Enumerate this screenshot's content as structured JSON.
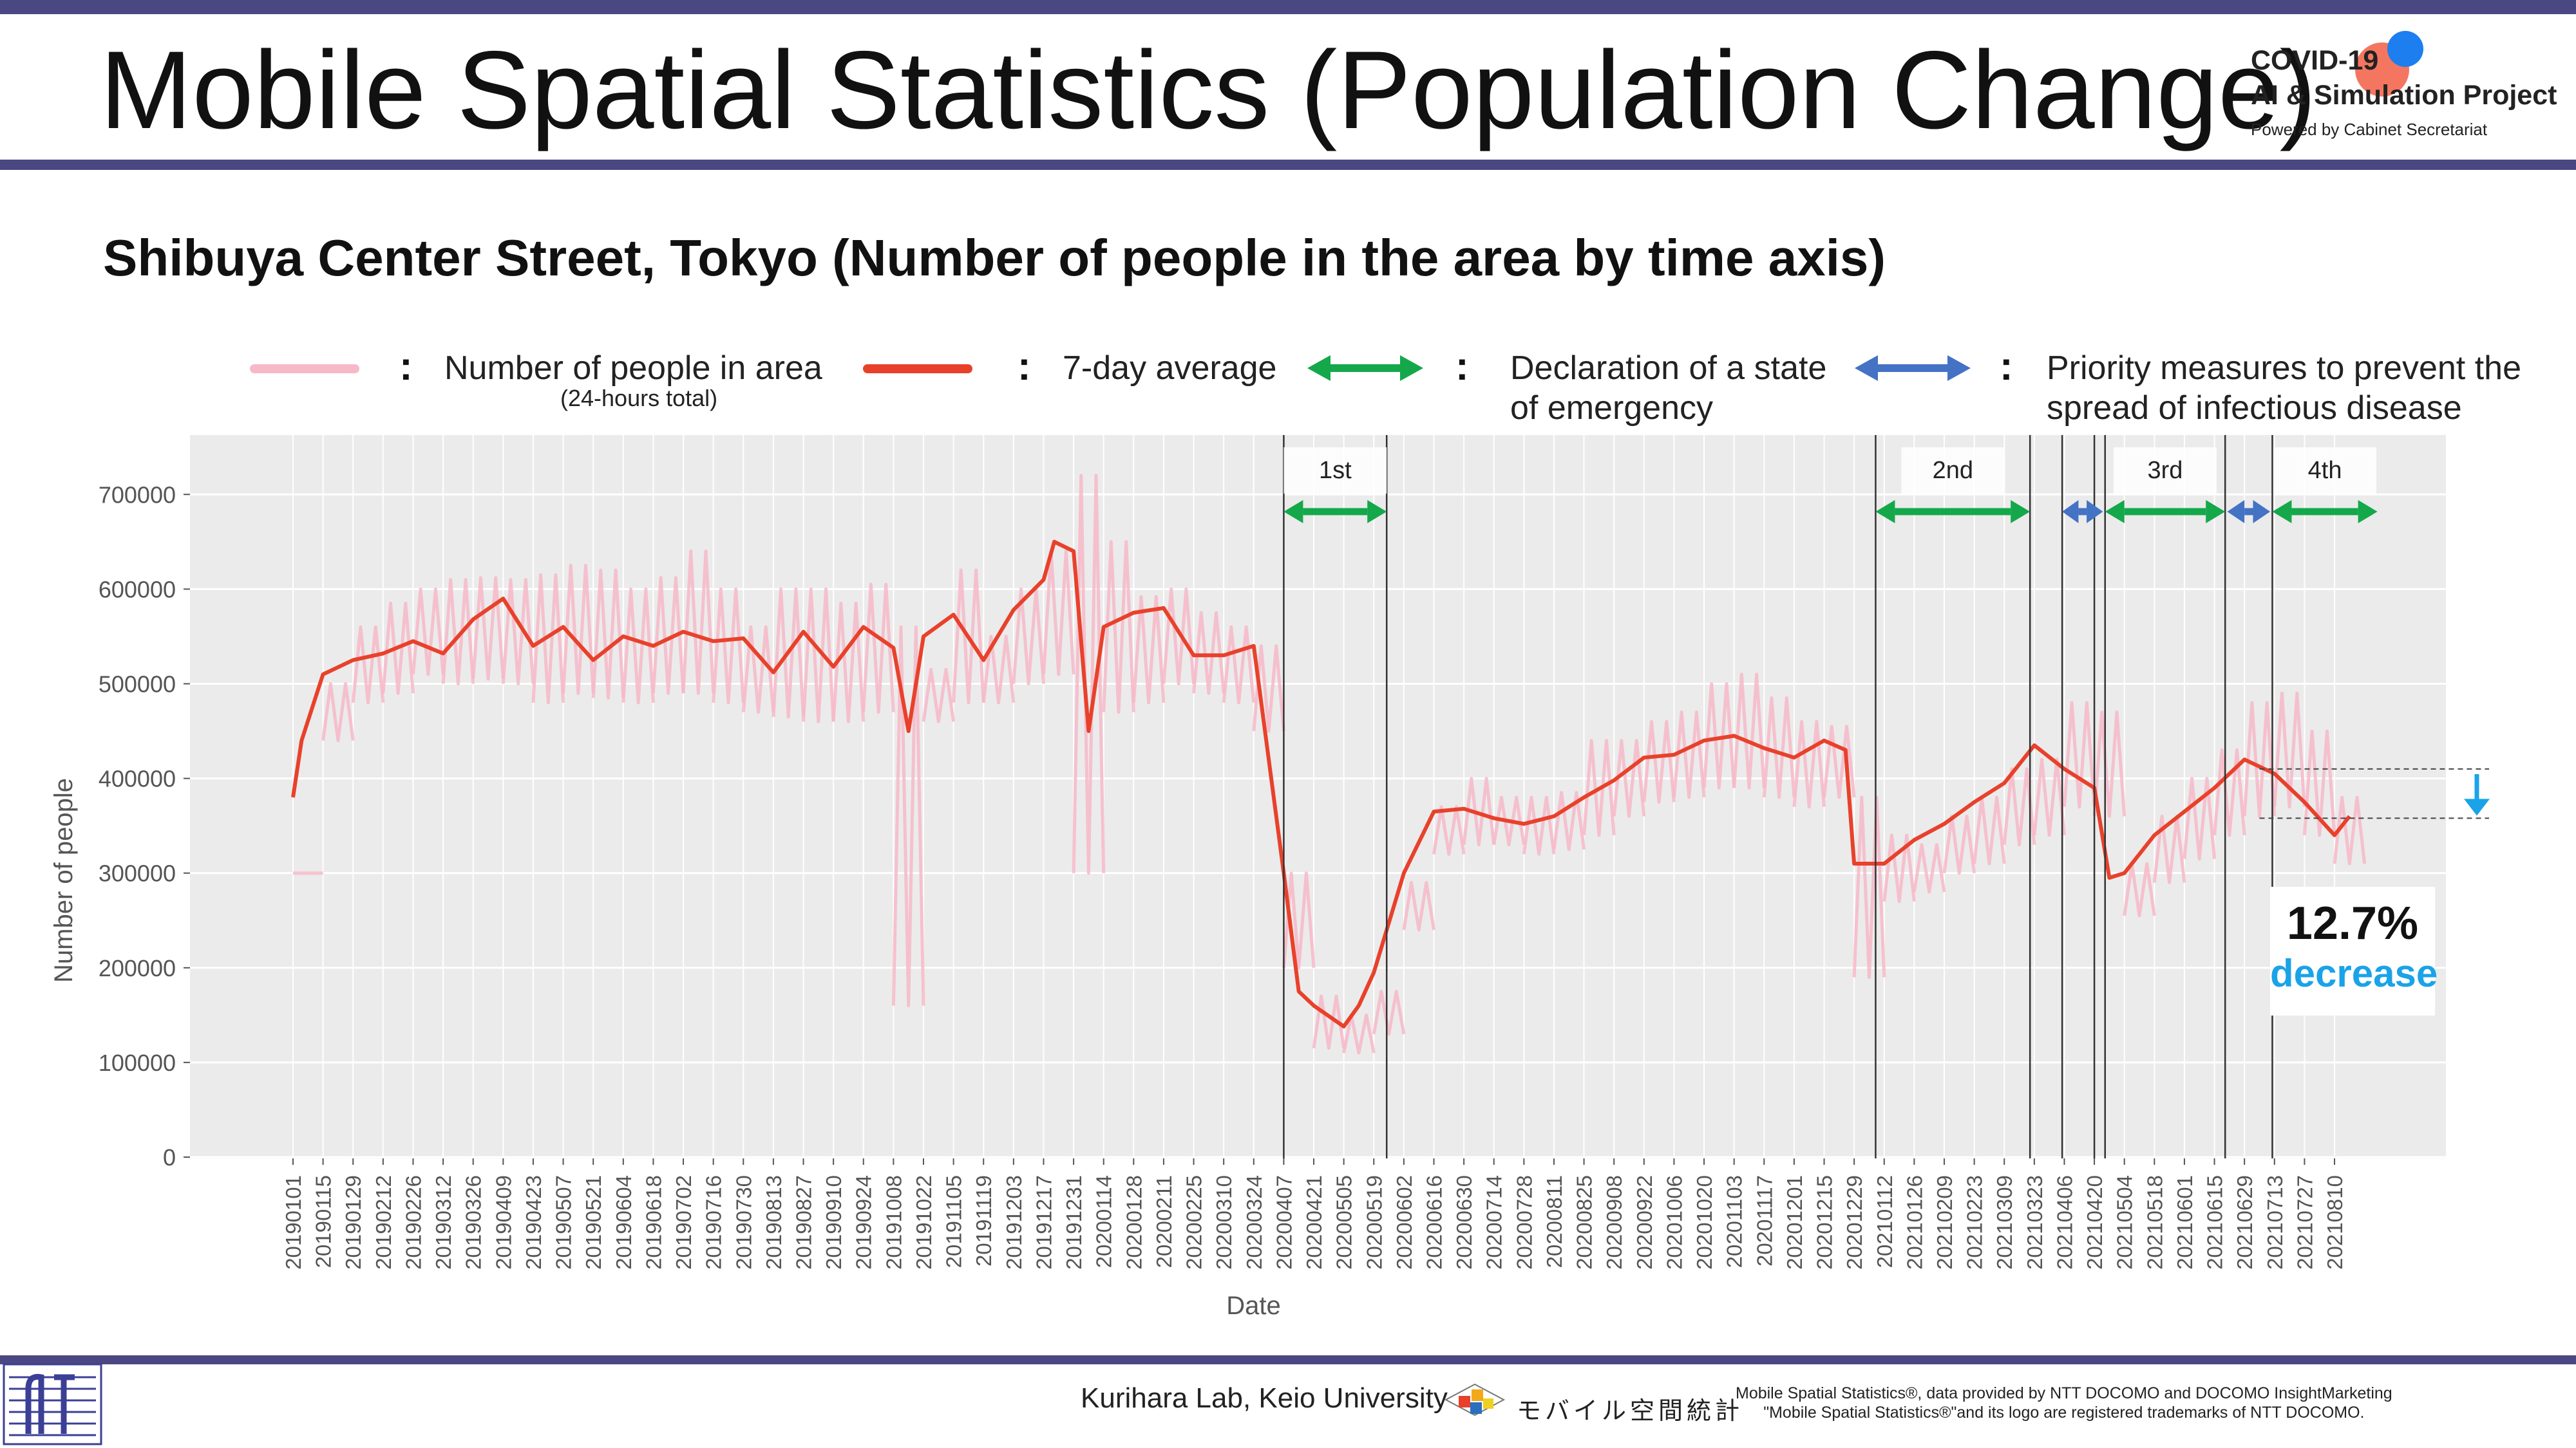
{
  "header": {
    "title": "Mobile Spatial Statistics (Population Change)",
    "logo_line1": "COVID-19",
    "logo_line2": "AI & Simulation Project",
    "logo_line3": "Powered by Cabinet Secretariat"
  },
  "subtitle": "Shibuya Center Street, Tokyo (Number of people in the area by time axis)",
  "legend": {
    "daily_label": "Number of people in area",
    "daily_sub": "(24-hours total)",
    "avg_label": "7-day average",
    "emergency_label_1": "Declaration of a state",
    "emergency_label_2": "of emergency",
    "priority_label_1": "Priority measures to prevent the",
    "priority_label_2": "spread of infectious disease",
    "colon": ":"
  },
  "callout": {
    "percent": "12.7%",
    "word": "decrease"
  },
  "footer": {
    "lab": "Kurihara Lab, Keio University",
    "mobile_logo_text": "モバイル空間統計",
    "note_line1": "Mobile Spatial Statistics®, data provided by NTT DOCOMO and DOCOMO InsightMarketing",
    "note_line2": "\"Mobile Spatial Statistics®\"and its logo are registered trademarks of NTT DOCOMO."
  },
  "colors": {
    "header_bar": "#4a4783",
    "daily": "#f7b8c8",
    "avg": "#e8412b",
    "emergency": "#14a84b",
    "priority": "#4472c4",
    "plot_bg": "#ebebeb",
    "decrease": "#1aa3e8"
  },
  "chart_data": {
    "type": "line",
    "xlabel": "Date",
    "ylabel": "Number of people",
    "ylim": [
      0,
      750000
    ],
    "yticks": [
      0,
      100000,
      200000,
      300000,
      400000,
      500000,
      600000,
      700000
    ],
    "ytick_labels": [
      "0",
      "100000",
      "200000",
      "300000",
      "400000",
      "500000",
      "600000",
      "700000"
    ],
    "x_tick_labels": [
      "20190101",
      "20190115",
      "20190129",
      "20190212",
      "20190226",
      "20190312",
      "20190326",
      "20190409",
      "20190423",
      "20190507",
      "20190521",
      "20190604",
      "20190618",
      "20190702",
      "20190716",
      "20190730",
      "20190813",
      "20190827",
      "20190910",
      "20190924",
      "20191008",
      "20191022",
      "20191105",
      "20191119",
      "20191203",
      "20191217",
      "20191231",
      "20200114",
      "20200128",
      "20200211",
      "20200225",
      "20200310",
      "20200324",
      "20200407",
      "20200421",
      "20200505",
      "20200519",
      "20200602",
      "20200616",
      "20200630",
      "20200714",
      "20200728",
      "20200811",
      "20200825",
      "20200908",
      "20200922",
      "20201006",
      "20201020",
      "20201103",
      "20201117",
      "20201201",
      "20201215",
      "20201229",
      "20210112",
      "20210126",
      "20210209",
      "20210223",
      "20210309",
      "20210323",
      "20210406",
      "20210420",
      "20210504",
      "20210518",
      "20210601",
      "20210615",
      "20210629",
      "20210713",
      "20210727",
      "20210810"
    ],
    "series": [
      {
        "name": "Number of people in area",
        "note": "daily values, weekly high/low envelope",
        "weekly_high": [
          300000,
          500000,
          560000,
          585000,
          600000,
          610000,
          612000,
          610000,
          615000,
          625000,
          620000,
          600000,
          612000,
          640000,
          600000,
          560000,
          600000,
          600000,
          585000,
          605000,
          560000,
          515000,
          620000,
          550000,
          600000,
          640000,
          720000,
          650000,
          592000,
          600000,
          575000,
          560000,
          540000,
          300000,
          170000,
          150000,
          175000,
          290000,
          370000,
          400000,
          380000,
          380000,
          385000,
          440000,
          440000,
          460000,
          470000,
          500000,
          510000,
          485000,
          460000,
          455000,
          380000,
          340000,
          330000,
          360000,
          380000,
          410000,
          420000,
          480000,
          470000,
          310000,
          360000,
          400000,
          430000,
          480000,
          490000,
          450000,
          380000
        ],
        "weekly_low": [
          300000,
          440000,
          480000,
          490000,
          510000,
          500000,
          505000,
          500000,
          480000,
          490000,
          485000,
          480000,
          490000,
          490000,
          480000,
          470000,
          465000,
          460000,
          460000,
          470000,
          160000,
          460000,
          480000,
          480000,
          500000,
          510000,
          300000,
          470000,
          480000,
          500000,
          490000,
          480000,
          450000,
          200000,
          115000,
          110000,
          130000,
          240000,
          320000,
          330000,
          330000,
          320000,
          325000,
          340000,
          360000,
          375000,
          380000,
          390000,
          390000,
          380000,
          370000,
          380000,
          190000,
          270000,
          280000,
          300000,
          310000,
          330000,
          340000,
          370000,
          360000,
          255000,
          290000,
          315000,
          340000,
          360000,
          370000,
          340000,
          310000
        ]
      },
      {
        "name": "7-day average",
        "x": [
          "20190101",
          "20190105",
          "20190115",
          "20190129",
          "20190212",
          "20190226",
          "20190312",
          "20190326",
          "20190409",
          "20190423",
          "20190507",
          "20190521",
          "20190604",
          "20190618",
          "20190702",
          "20190716",
          "20190730",
          "20190813",
          "20190827",
          "20190910",
          "20190924",
          "20191008",
          "20191015",
          "20191022",
          "20191105",
          "20191119",
          "20191203",
          "20191217",
          "20191222",
          "20191231",
          "20200107",
          "20200114",
          "20200128",
          "20200211",
          "20200225",
          "20200310",
          "20200324",
          "20200407",
          "20200414",
          "20200421",
          "20200505",
          "20200512",
          "20200519",
          "20200602",
          "20200616",
          "20200630",
          "20200714",
          "20200728",
          "20200811",
          "20200825",
          "20200908",
          "20200922",
          "20201006",
          "20201020",
          "20201103",
          "20201117",
          "20201201",
          "20201215",
          "20201225",
          "20201229",
          "20210105",
          "20210112",
          "20210126",
          "20210209",
          "20210223",
          "20210309",
          "20210323",
          "20210406",
          "20210420",
          "20210427",
          "20210504",
          "20210518",
          "20210601",
          "20210615",
          "20210629",
          "20210713",
          "20210727",
          "20210810",
          "20210817"
        ],
        "y": [
          380000,
          440000,
          510000,
          525000,
          532000,
          545000,
          532000,
          568000,
          590000,
          540000,
          560000,
          525000,
          550000,
          540000,
          555000,
          545000,
          548000,
          512000,
          555000,
          518000,
          560000,
          538000,
          450000,
          550000,
          573000,
          525000,
          578000,
          610000,
          650000,
          640000,
          450000,
          560000,
          575000,
          580000,
          530000,
          530000,
          540000,
          300000,
          175000,
          160000,
          138000,
          160000,
          195000,
          300000,
          365000,
          368000,
          358000,
          352000,
          360000,
          380000,
          398000,
          422000,
          425000,
          440000,
          445000,
          432000,
          422000,
          440000,
          430000,
          310000,
          310000,
          310000,
          335000,
          352000,
          375000,
          395000,
          435000,
          410000,
          390000,
          295000,
          300000,
          340000,
          365000,
          390000,
          420000,
          405000,
          375000,
          340000,
          360000
        ]
      }
    ],
    "period_labels": [
      "1st",
      "2nd",
      "3rd",
      "4th"
    ],
    "emergency_periods": [
      [
        "20200407",
        "20200525"
      ],
      [
        "20210108",
        "20210321"
      ],
      [
        "20210425",
        "20210620"
      ],
      [
        "20210712",
        "20210830"
      ]
    ],
    "priority_periods": [
      [
        "20210405",
        "20210424"
      ],
      [
        "20210621",
        "20210711"
      ]
    ],
    "period_boundaries": [
      "20200407",
      "20200525",
      "20210108",
      "20210321",
      "20210405",
      "20210420",
      "20210425",
      "20210620",
      "20210712"
    ],
    "reference_levels": [
      410000,
      358000
    ]
  }
}
